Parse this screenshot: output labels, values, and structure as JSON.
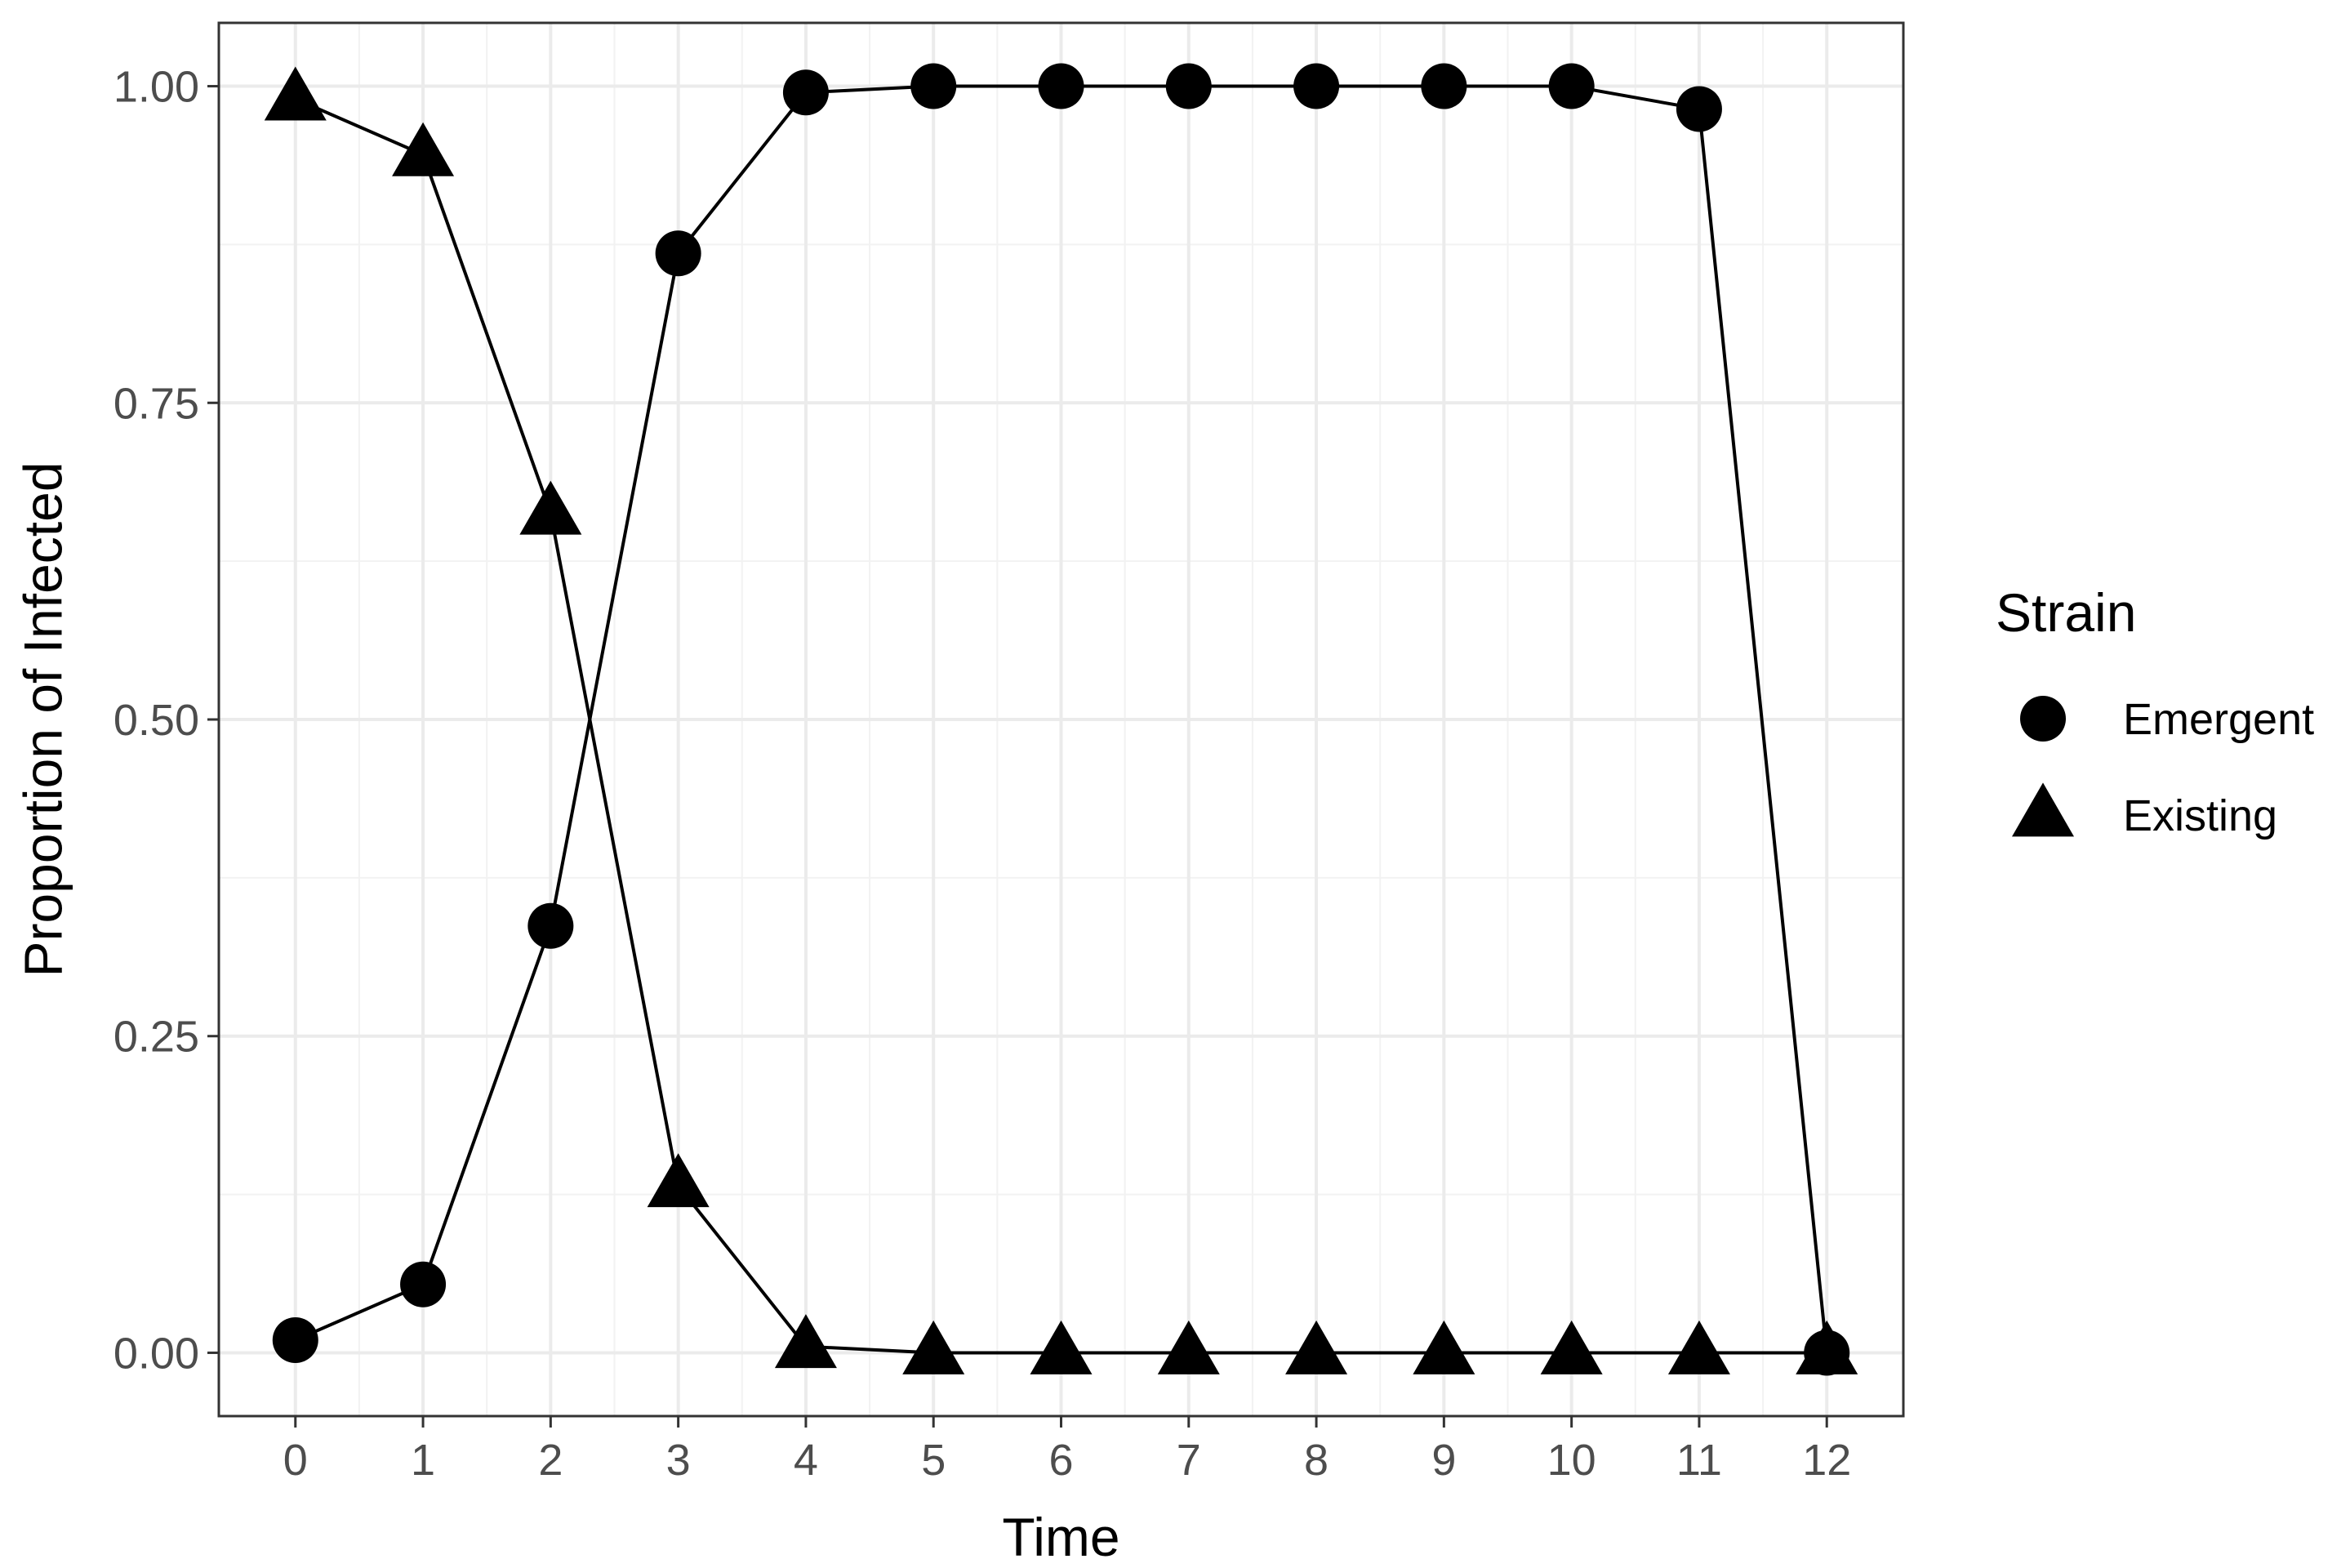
{
  "chart_data": {
    "type": "line",
    "xlabel": "Time",
    "ylabel": "Proportion of Infected",
    "xlim": [
      -0.6,
      12.6
    ],
    "ylim": [
      -0.05,
      1.05
    ],
    "x_ticks": [
      0,
      1,
      2,
      3,
      4,
      5,
      6,
      7,
      8,
      9,
      10,
      11,
      12
    ],
    "y_ticks": [
      0.0,
      0.25,
      0.5,
      0.75,
      1.0
    ],
    "y_tick_labels": [
      "0.00",
      "0.25",
      "0.50",
      "0.75",
      "1.00"
    ],
    "grid": true,
    "legend": {
      "title": "Strain",
      "position": "right"
    },
    "x": [
      0,
      1,
      2,
      3,
      4,
      5,
      6,
      7,
      8,
      9,
      10,
      11,
      12
    ],
    "series": [
      {
        "name": "Emergent",
        "marker": "circle",
        "values": [
          0.01,
          0.054,
          0.337,
          0.868,
          0.995,
          1.0,
          1.0,
          1.0,
          1.0,
          1.0,
          1.0,
          0.982,
          0.0
        ]
      },
      {
        "name": "Existing",
        "marker": "triangle",
        "values": [
          0.99,
          0.946,
          0.663,
          0.132,
          0.005,
          0.0,
          0.0,
          0.0,
          0.0,
          0.0,
          0.0,
          0.0,
          0.0
        ]
      }
    ],
    "colors": {
      "series": "#000000",
      "grid": "#ebebeb",
      "border": "#333333",
      "tick_label": "#4d4d4d"
    }
  }
}
